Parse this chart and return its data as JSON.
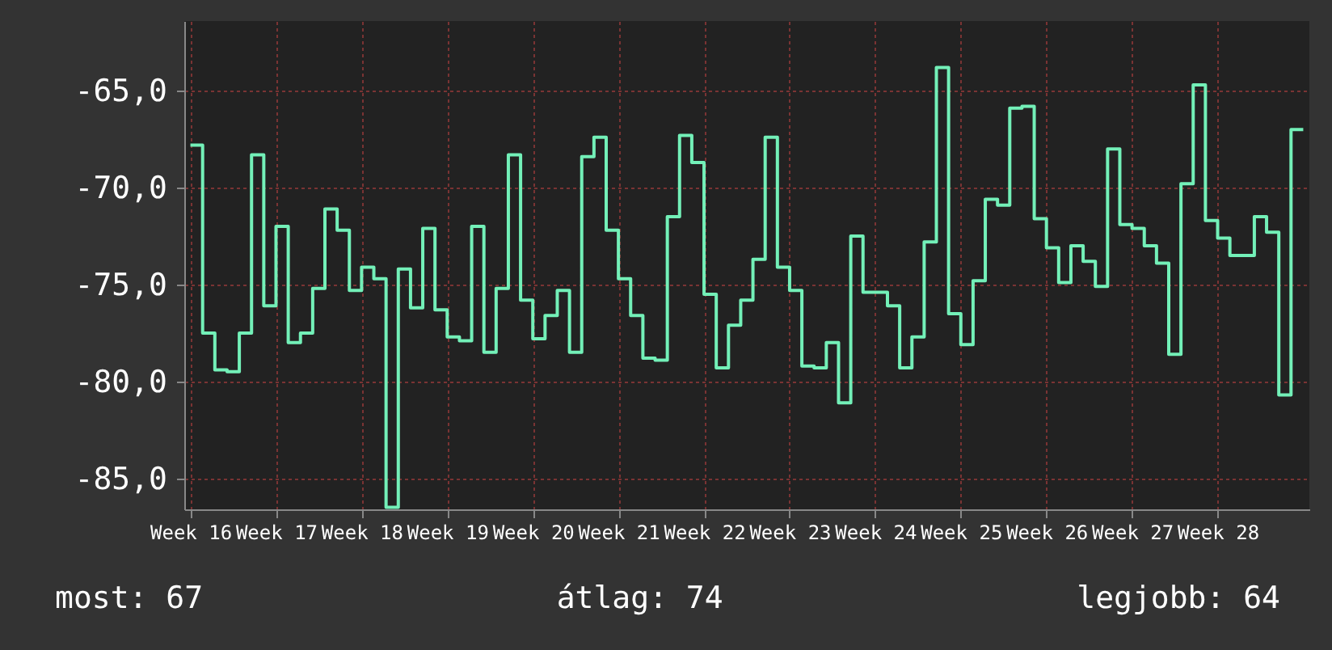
{
  "chart_data": {
    "type": "step",
    "categories": [
      "Week 16",
      null,
      null,
      null,
      null,
      null,
      null,
      "Week 17",
      null,
      null,
      null,
      null,
      null,
      null,
      "Week 18",
      null,
      null,
      null,
      null,
      null,
      null,
      "Week 19",
      null,
      null,
      null,
      null,
      null,
      null,
      "Week 20",
      null,
      null,
      null,
      null,
      null,
      null,
      "Week 21",
      null,
      null,
      null,
      null,
      null,
      null,
      "Week 22",
      null,
      null,
      null,
      null,
      null,
      null,
      "Week 23",
      null,
      null,
      null,
      null,
      null,
      null,
      "Week 24",
      null,
      null,
      null,
      null,
      null,
      null,
      "Week 25",
      null,
      null,
      null,
      null,
      null,
      null,
      "Week 26",
      null,
      null,
      null,
      null,
      null,
      null,
      "Week 27",
      null,
      null,
      null,
      null,
      null,
      null,
      "Week 28",
      null,
      null,
      null,
      null,
      null,
      null,
      null
    ],
    "series": [
      {
        "color": "#73f0b8",
        "values": [
          -67.8,
          -77.5,
          -79.4,
          -79.5,
          -77.5,
          -68.3,
          -76.1,
          -72.0,
          -78.0,
          -77.5,
          -75.2,
          -71.1,
          -72.2,
          -75.3,
          -74.1,
          -74.7,
          -86.5,
          -74.2,
          -76.2,
          -72.1,
          -76.3,
          -77.7,
          -77.9,
          -72.0,
          -78.5,
          -75.2,
          -68.3,
          -75.8,
          -77.8,
          -76.6,
          -75.3,
          -78.5,
          -68.4,
          -67.4,
          -72.2,
          -74.7,
          -76.6,
          -78.8,
          -78.9,
          -71.5,
          -67.3,
          -68.7,
          -75.5,
          -79.3,
          -77.1,
          -75.8,
          -73.7,
          -67.4,
          -74.1,
          -75.3,
          -79.2,
          -79.3,
          -78.0,
          -81.1,
          -72.5,
          -75.4,
          -75.4,
          -76.1,
          -79.3,
          -77.7,
          -72.8,
          -63.8,
          -76.5,
          -78.1,
          -74.8,
          -70.6,
          -70.9,
          -65.9,
          -65.8,
          -71.6,
          -73.1,
          -74.9,
          -73.0,
          -73.8,
          -75.1,
          -68.0,
          -71.9,
          -72.1,
          -73.0,
          -73.9,
          -78.6,
          -69.8,
          -64.7,
          -71.7,
          -72.6,
          -73.5,
          -73.5,
          -71.5,
          -72.3,
          -80.7,
          -67.0,
          -67.0
        ]
      }
    ],
    "ylim": [
      -86.6,
      -61.4
    ],
    "yticks": [
      {
        "value": -85,
        "label": "-85,0"
      },
      {
        "value": -80,
        "label": "-80,0"
      },
      {
        "value": -75,
        "label": "-75,0"
      },
      {
        "value": -70,
        "label": "-70,0"
      },
      {
        "value": -65,
        "label": "-65,0"
      }
    ],
    "grid": true,
    "annotations": [
      "most: 67",
      "átlag: 74",
      "legjobb: 64"
    ]
  }
}
